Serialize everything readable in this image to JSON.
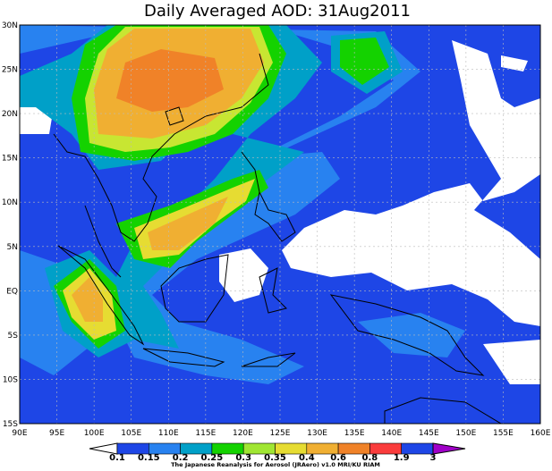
{
  "title": "Daily Averaged AOD: 31Aug2011",
  "x_axis": {
    "ticks": [
      "90E",
      "95E",
      "100E",
      "105E",
      "110E",
      "115E",
      "120E",
      "125E",
      "130E",
      "135E",
      "140E",
      "145E",
      "150E",
      "155E",
      "160E"
    ]
  },
  "y_axis": {
    "ticks": [
      "30N",
      "25N",
      "20N",
      "15N",
      "10N",
      "5N",
      "EQ",
      "5S",
      "10S",
      "15S"
    ]
  },
  "colorbar": {
    "levels": [
      0.1,
      0.15,
      0.2,
      0.25,
      0.3,
      0.35,
      0.4,
      0.6,
      0.8,
      1.9,
      3
    ]
  },
  "credit": "The Japanese Reanalysis for Aerosol (JRAero) v1.0 MRI/KU RIAM"
}
